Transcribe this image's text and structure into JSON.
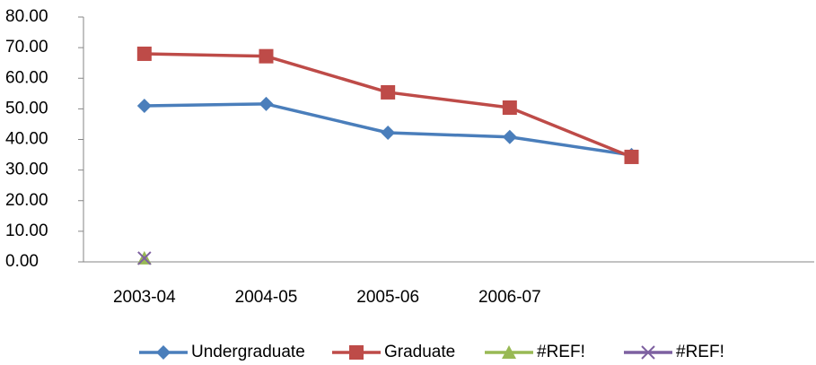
{
  "chart_data": {
    "type": "line",
    "categories": [
      "2003-04",
      "2004-05",
      "2005-06",
      "2006-07",
      null,
      null
    ],
    "series": [
      {
        "name": "Undergraduate",
        "color": "#4a7ebb",
        "marker": "diamond",
        "values": [
          51.0,
          51.6,
          42.2,
          40.8,
          34.9,
          null
        ]
      },
      {
        "name": "Graduate",
        "color": "#be4b48",
        "marker": "square",
        "values": [
          68.0,
          67.2,
          55.4,
          50.4,
          34.3,
          null
        ]
      },
      {
        "name": "#REF!",
        "color": "#98b954",
        "marker": "triangle",
        "values": [
          1.2,
          null,
          null,
          null,
          null,
          null
        ]
      },
      {
        "name": "#REF!",
        "color": "#7d60a0",
        "marker": "x",
        "values": [
          1.2,
          null,
          null,
          null,
          null,
          null
        ]
      }
    ],
    "ylim": [
      0,
      80
    ],
    "yticks": [
      {
        "value": 0,
        "label": "0.00"
      },
      {
        "value": 10,
        "label": "10.00"
      },
      {
        "value": 20,
        "label": "20.00"
      },
      {
        "value": 30,
        "label": "30.00"
      },
      {
        "value": 40,
        "label": "40.00"
      },
      {
        "value": 50,
        "label": "50.00"
      },
      {
        "value": 60,
        "label": "60.00"
      },
      {
        "value": 70,
        "label": "70.00"
      },
      {
        "value": 80,
        "label": "80.00"
      }
    ],
    "grid": false,
    "legend": "bottom"
  }
}
